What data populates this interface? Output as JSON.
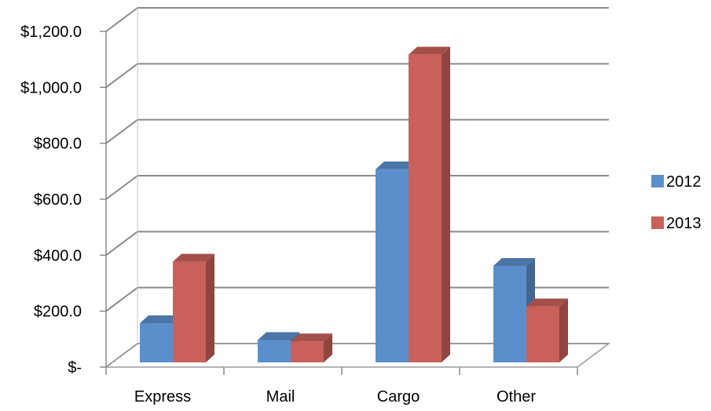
{
  "chart_data": {
    "type": "bar",
    "style": "3d-clustered-column",
    "title": "",
    "xlabel": "",
    "ylabel": "",
    "categories": [
      "Express",
      "Mail",
      "Cargo",
      "Other"
    ],
    "series": [
      {
        "name": "2012",
        "color": "#5B8FCB",
        "values": [
          140,
          80,
          690,
          345
        ]
      },
      {
        "name": "2013",
        "color": "#C9605A",
        "values": [
          360,
          75,
          1100,
          200
        ]
      }
    ],
    "ylim": [
      0,
      1200
    ],
    "yticks": [
      0,
      200,
      400,
      600,
      800,
      1000,
      1200
    ],
    "ytick_labels": [
      "$-",
      "$200.0",
      "$400.0",
      "$600.0",
      "$800.0",
      "$1,000.0",
      "$1,200.0"
    ],
    "grid": true,
    "legend_position": "right"
  }
}
